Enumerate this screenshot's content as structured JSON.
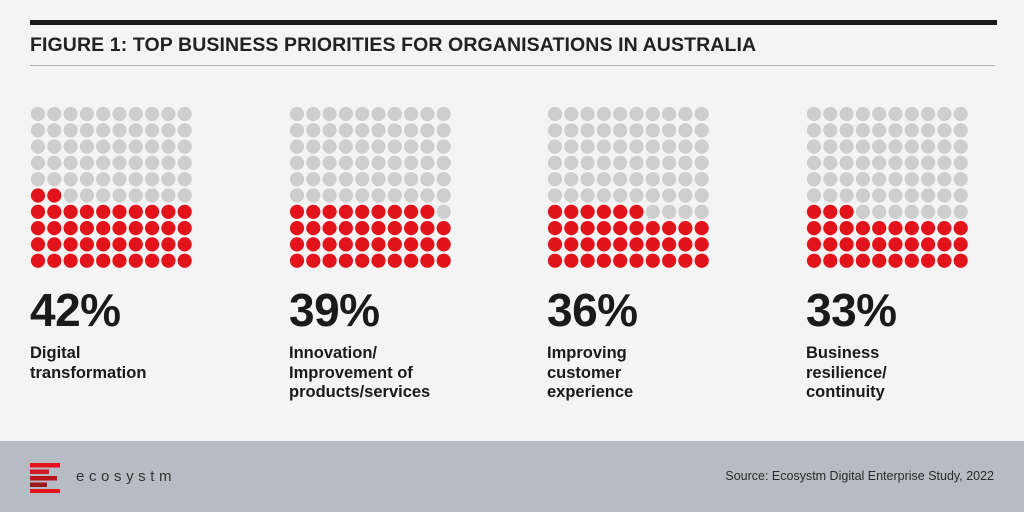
{
  "title": "FIGURE 1: TOP BUSINESS PRIORITIES FOR ORGANISATIONS IN AUSTRALIA",
  "colors": {
    "filled": "#e3131b",
    "empty": "#cecece",
    "background": "#f4f4f4",
    "footer": "#b6bcc3"
  },
  "chart_data": {
    "type": "waffle",
    "title": "FIGURE 1: TOP BUSINESS PRIORITIES FOR ORGANISATIONS IN AUSTRALIA",
    "grid": [
      10,
      10
    ],
    "unit": "%",
    "categories": [
      "Digital transformation",
      "Innovation/ Improvement of products/services",
      "Improving customer experience",
      "Business resilience/ continuity"
    ],
    "values": [
      42,
      39,
      36,
      33
    ]
  },
  "panels": [
    {
      "pct": "42%",
      "lines": [
        "Digital",
        "transformation",
        ""
      ]
    },
    {
      "pct": "39%",
      "lines": [
        "Innovation/",
        "Improvement of",
        "products/services"
      ]
    },
    {
      "pct": "36%",
      "lines": [
        "Improving",
        "customer",
        "experience"
      ]
    },
    {
      "pct": "33%",
      "lines": [
        "Business",
        "resilience/",
        "continuity"
      ]
    }
  ],
  "footer": {
    "brand": "ecosystm",
    "source": "Source: Ecosystm Digital Enterprise Study, 2022",
    "logo_icon": "ecosystm-logo-icon"
  }
}
